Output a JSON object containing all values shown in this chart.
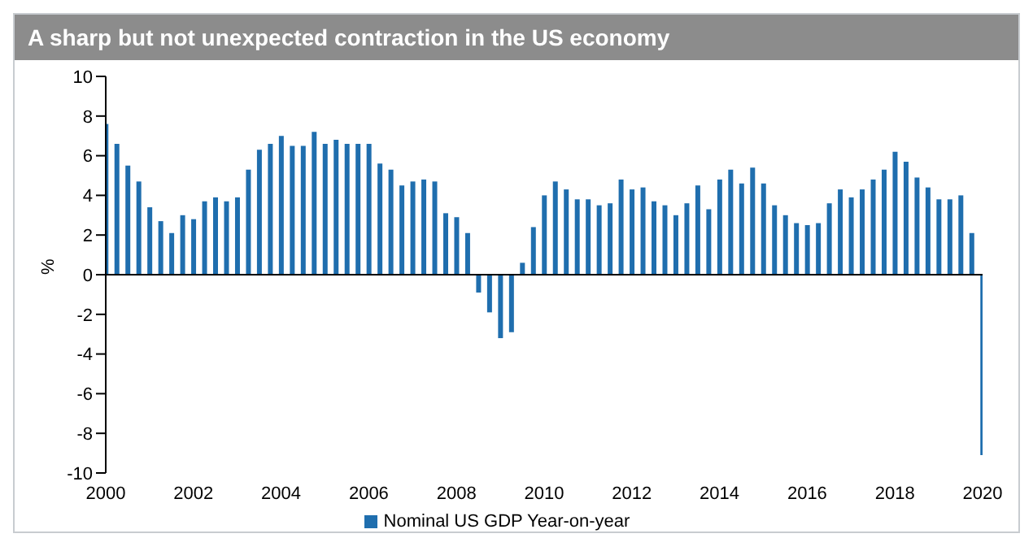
{
  "chart_data": {
    "type": "bar",
    "title": "A sharp but not unexpected contraction in the US economy",
    "ylabel": "%",
    "x": [
      2000,
      2000.25,
      2000.5,
      2000.75,
      2001,
      2001.25,
      2001.5,
      2001.75,
      2002,
      2002.25,
      2002.5,
      2002.75,
      2003,
      2003.25,
      2003.5,
      2003.75,
      2004,
      2004.25,
      2004.5,
      2004.75,
      2005,
      2005.25,
      2005.5,
      2005.75,
      2006,
      2006.25,
      2006.5,
      2006.75,
      2007,
      2007.25,
      2007.5,
      2007.75,
      2008,
      2008.25,
      2008.5,
      2008.75,
      2009,
      2009.25,
      2009.5,
      2009.75,
      2010,
      2010.25,
      2010.5,
      2010.75,
      2011,
      2011.25,
      2011.5,
      2011.75,
      2012,
      2012.25,
      2012.5,
      2012.75,
      2013,
      2013.25,
      2013.5,
      2013.75,
      2014,
      2014.25,
      2014.5,
      2014.75,
      2015,
      2015.25,
      2015.5,
      2015.75,
      2016,
      2016.25,
      2016.5,
      2016.75,
      2017,
      2017.25,
      2017.5,
      2017.75,
      2018,
      2018.25,
      2018.5,
      2018.75,
      2019,
      2019.25,
      2019.5,
      2019.75,
      2020
    ],
    "series": [
      {
        "name": "Nominal US GDP Year-on-year",
        "color": "#1f6eae",
        "values": [
          7.6,
          6.6,
          5.5,
          4.7,
          3.4,
          2.7,
          2.1,
          3.0,
          2.8,
          3.7,
          3.9,
          3.7,
          3.9,
          5.3,
          6.3,
          6.6,
          7.0,
          6.5,
          6.5,
          7.2,
          6.6,
          6.8,
          6.6,
          6.6,
          6.6,
          5.6,
          5.3,
          4.5,
          4.7,
          4.8,
          4.7,
          3.1,
          2.9,
          2.1,
          -0.9,
          -1.9,
          -3.2,
          -2.9,
          0.6,
          2.4,
          4.0,
          4.7,
          4.3,
          3.8,
          3.8,
          3.5,
          3.6,
          4.8,
          4.3,
          4.4,
          3.7,
          3.5,
          3.0,
          3.6,
          4.5,
          3.3,
          4.8,
          5.3,
          4.6,
          5.4,
          4.6,
          3.5,
          3.0,
          2.6,
          2.5,
          2.6,
          3.6,
          4.3,
          3.9,
          4.3,
          4.8,
          5.3,
          6.2,
          5.7,
          4.9,
          4.4,
          3.8,
          3.8,
          4.0,
          2.1,
          -9.1
        ]
      }
    ],
    "xlim": [
      2000,
      2020
    ],
    "xticks": [
      2000,
      2002,
      2004,
      2006,
      2008,
      2010,
      2012,
      2014,
      2016,
      2018,
      2020
    ],
    "ylim": [
      -10,
      10
    ],
    "yticks": [
      -10,
      -8,
      -6,
      -4,
      -2,
      0,
      2,
      4,
      6,
      8,
      10
    ],
    "legend": "bottom"
  }
}
